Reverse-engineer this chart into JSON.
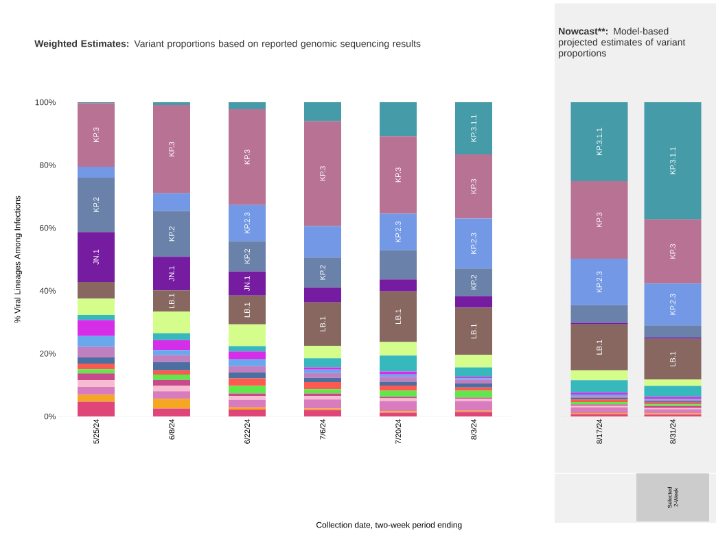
{
  "chart_data": [
    {
      "type": "bar",
      "stacked": true,
      "title": "Weighted Estimates:",
      "subtitle": "Variant proportions based on reported genomic sequencing results",
      "ylabel": "% Viral Lineages Among Infections",
      "xlabel": "Collection date, two-week period ending",
      "categories": [
        "5/25/24",
        "6/8/24",
        "6/22/24",
        "7/6/24",
        "7/20/24",
        "8/3/24"
      ],
      "ylim": [
        0,
        100
      ],
      "yticks": [
        {
          "value": 0,
          "label": "0%"
        },
        {
          "value": 20,
          "label": "20%"
        },
        {
          "value": 40,
          "label": "40%"
        },
        {
          "value": 60,
          "label": "60%"
        },
        {
          "value": 80,
          "label": "80%"
        },
        {
          "value": 100,
          "label": "100%"
        }
      ],
      "series": [
        {
          "color": "#e0457a",
          "values": [
            4.7,
            2.5,
            2.2,
            2.0,
            1.2,
            1.4
          ]
        },
        {
          "color": "#f5a623",
          "values": [
            2.2,
            3.1,
            0.7,
            0.5,
            0.5,
            0.4
          ]
        },
        {
          "color": "#d97bbf",
          "values": [
            2.5,
            2.4,
            2.4,
            2.9,
            3.2,
            3.1
          ]
        },
        {
          "color": "#f7bcd0",
          "values": [
            2.1,
            1.8,
            1.2,
            1.1,
            0.9,
            0.7
          ]
        },
        {
          "color": "#c94a8a",
          "values": [
            2.2,
            1.8,
            0.8,
            0.8,
            0.5,
            0.4
          ]
        },
        {
          "color": "#5ee84a",
          "values": [
            1.3,
            1.7,
            2.4,
            1.4,
            1.9,
            2.2
          ]
        },
        {
          "color": "#fc5a50",
          "values": [
            1.8,
            1.4,
            2.4,
            2.2,
            1.6,
            1.0
          ]
        },
        {
          "color": "#4a6fa0",
          "values": [
            2.0,
            2.6,
            1.9,
            1.4,
            1.2,
            1.3
          ]
        },
        {
          "color": "#c080c0",
          "values": [
            3.3,
            2.2,
            2.0,
            1.5,
            1.6,
            1.1
          ]
        },
        {
          "color": "#6aa8ee",
          "values": [
            3.5,
            1.6,
            2.2,
            1.1,
            0.8,
            0.5
          ]
        },
        {
          "color": "#d42ee8",
          "values": [
            5.1,
            3.2,
            2.5,
            0.7,
            0.9,
            0.5
          ]
        },
        {
          "color": "#36b8bc",
          "values": [
            1.6,
            2.2,
            1.7,
            2.9,
            5.1,
            3.0
          ]
        },
        {
          "color": "#d4fd8c",
          "values": [
            5.2,
            6.9,
            6.9,
            4.0,
            4.3,
            4.0
          ]
        },
        {
          "color": "#876760",
          "values": [
            5.3,
            6.7,
            9.2,
            13.8,
            16.1,
            15.0
          ],
          "value_labels": [
            null,
            "LB.1",
            "LB.1",
            "LB.1",
            "LB.1",
            "LB.1"
          ]
        },
        {
          "color": "#761ca0",
          "values": [
            15.9,
            10.7,
            7.6,
            4.7,
            3.8,
            3.7
          ],
          "value_labels": [
            "JN.1",
            "JN.1",
            "JN.1",
            null,
            null,
            null
          ]
        },
        {
          "color": "#6a82aa",
          "values": [
            17.3,
            14.6,
            9.7,
            9.6,
            9.3,
            8.8
          ],
          "value_labels": [
            "KP.2",
            "KP.2",
            "KP.2",
            "KP.2",
            null,
            "KP.2"
          ]
        },
        {
          "color": "#7298e6",
          "values": [
            3.5,
            5.6,
            11.5,
            10.0,
            11.6,
            15.9
          ],
          "value_labels": [
            null,
            null,
            "KP.2.3",
            null,
            "KP.2.3",
            "KP.2.3"
          ]
        },
        {
          "color": "#b87294",
          "values": [
            20.2,
            28.1,
            30.5,
            33.4,
            24.7,
            20.4
          ],
          "value_labels": [
            "KP.3",
            "KP.3",
            "KP.3",
            "KP.3",
            "KP.3",
            "KP.3"
          ]
        },
        {
          "color": "#459ba8",
          "values": [
            0.3,
            0.9,
            2.2,
            6.0,
            10.8,
            16.6
          ],
          "value_labels": [
            null,
            null,
            null,
            null,
            null,
            "KP.3.1.1"
          ]
        }
      ]
    },
    {
      "type": "bar",
      "stacked": true,
      "title": "Nowcast**:",
      "subtitle": "Model-based projected estimates of variant proportions",
      "annotations": [
        "Selected 2-Week"
      ],
      "categories": [
        "8/17/24",
        "8/31/24"
      ],
      "ylim": [
        0,
        100
      ],
      "yticks": [
        {
          "value": 0,
          "label": null
        },
        {
          "value": 20,
          "label": null
        },
        {
          "value": 40,
          "label": null
        },
        {
          "value": 60,
          "label": null
        },
        {
          "value": 80,
          "label": null
        },
        {
          "value": 100,
          "label": null
        }
      ],
      "tick_labels": "x",
      "series": [
        {
          "color": "#e0457a",
          "values": [
            0.7,
            0.6
          ]
        },
        {
          "color": "#f5a623",
          "values": [
            0.4,
            0.4
          ]
        },
        {
          "color": "#d97bbf",
          "values": [
            1.8,
            1.3
          ]
        },
        {
          "color": "#f7bcd0",
          "values": [
            0.5,
            0.4
          ]
        },
        {
          "color": "#c94a8a",
          "values": [
            0.4,
            0.6
          ]
        },
        {
          "color": "#5ee84a",
          "values": [
            0.8,
            0.5
          ]
        },
        {
          "color": "#fc5a50",
          "values": [
            0.8,
            0.6
          ]
        },
        {
          "color": "#4a6fa0",
          "values": [
            0.6,
            0.5
          ]
        },
        {
          "color": "#c080c0",
          "values": [
            0.5,
            0.5
          ]
        },
        {
          "color": "#6aa8ee",
          "values": [
            0.5,
            0.3
          ]
        },
        {
          "color": "#d42ee8",
          "values": [
            0.6,
            0.5
          ]
        },
        {
          "color": "#36b8bc",
          "values": [
            3.9,
            3.5
          ]
        },
        {
          "color": "#d4fd8c",
          "values": [
            3.2,
            2.1
          ]
        },
        {
          "color": "#876760",
          "values": [
            14.6,
            12.9
          ],
          "value_labels": [
            "LB.1",
            "LB.1"
          ]
        },
        {
          "color": "#761ca0",
          "values": [
            0.5,
            0.4
          ]
        },
        {
          "color": "#6a82aa",
          "values": [
            5.6,
            3.9
          ]
        },
        {
          "color": "#7298e6",
          "values": [
            14.8,
            13.3
          ],
          "value_labels": [
            "KP.2.3",
            "KP.2.3"
          ]
        },
        {
          "color": "#b87294",
          "values": [
            24.7,
            20.4
          ],
          "value_labels": [
            "KP.3",
            "KP.3"
          ]
        },
        {
          "color": "#459ba8",
          "values": [
            25.1,
            37.3
          ],
          "value_labels": [
            "KP.3.1.1",
            "KP.3.1.1"
          ]
        }
      ]
    }
  ]
}
